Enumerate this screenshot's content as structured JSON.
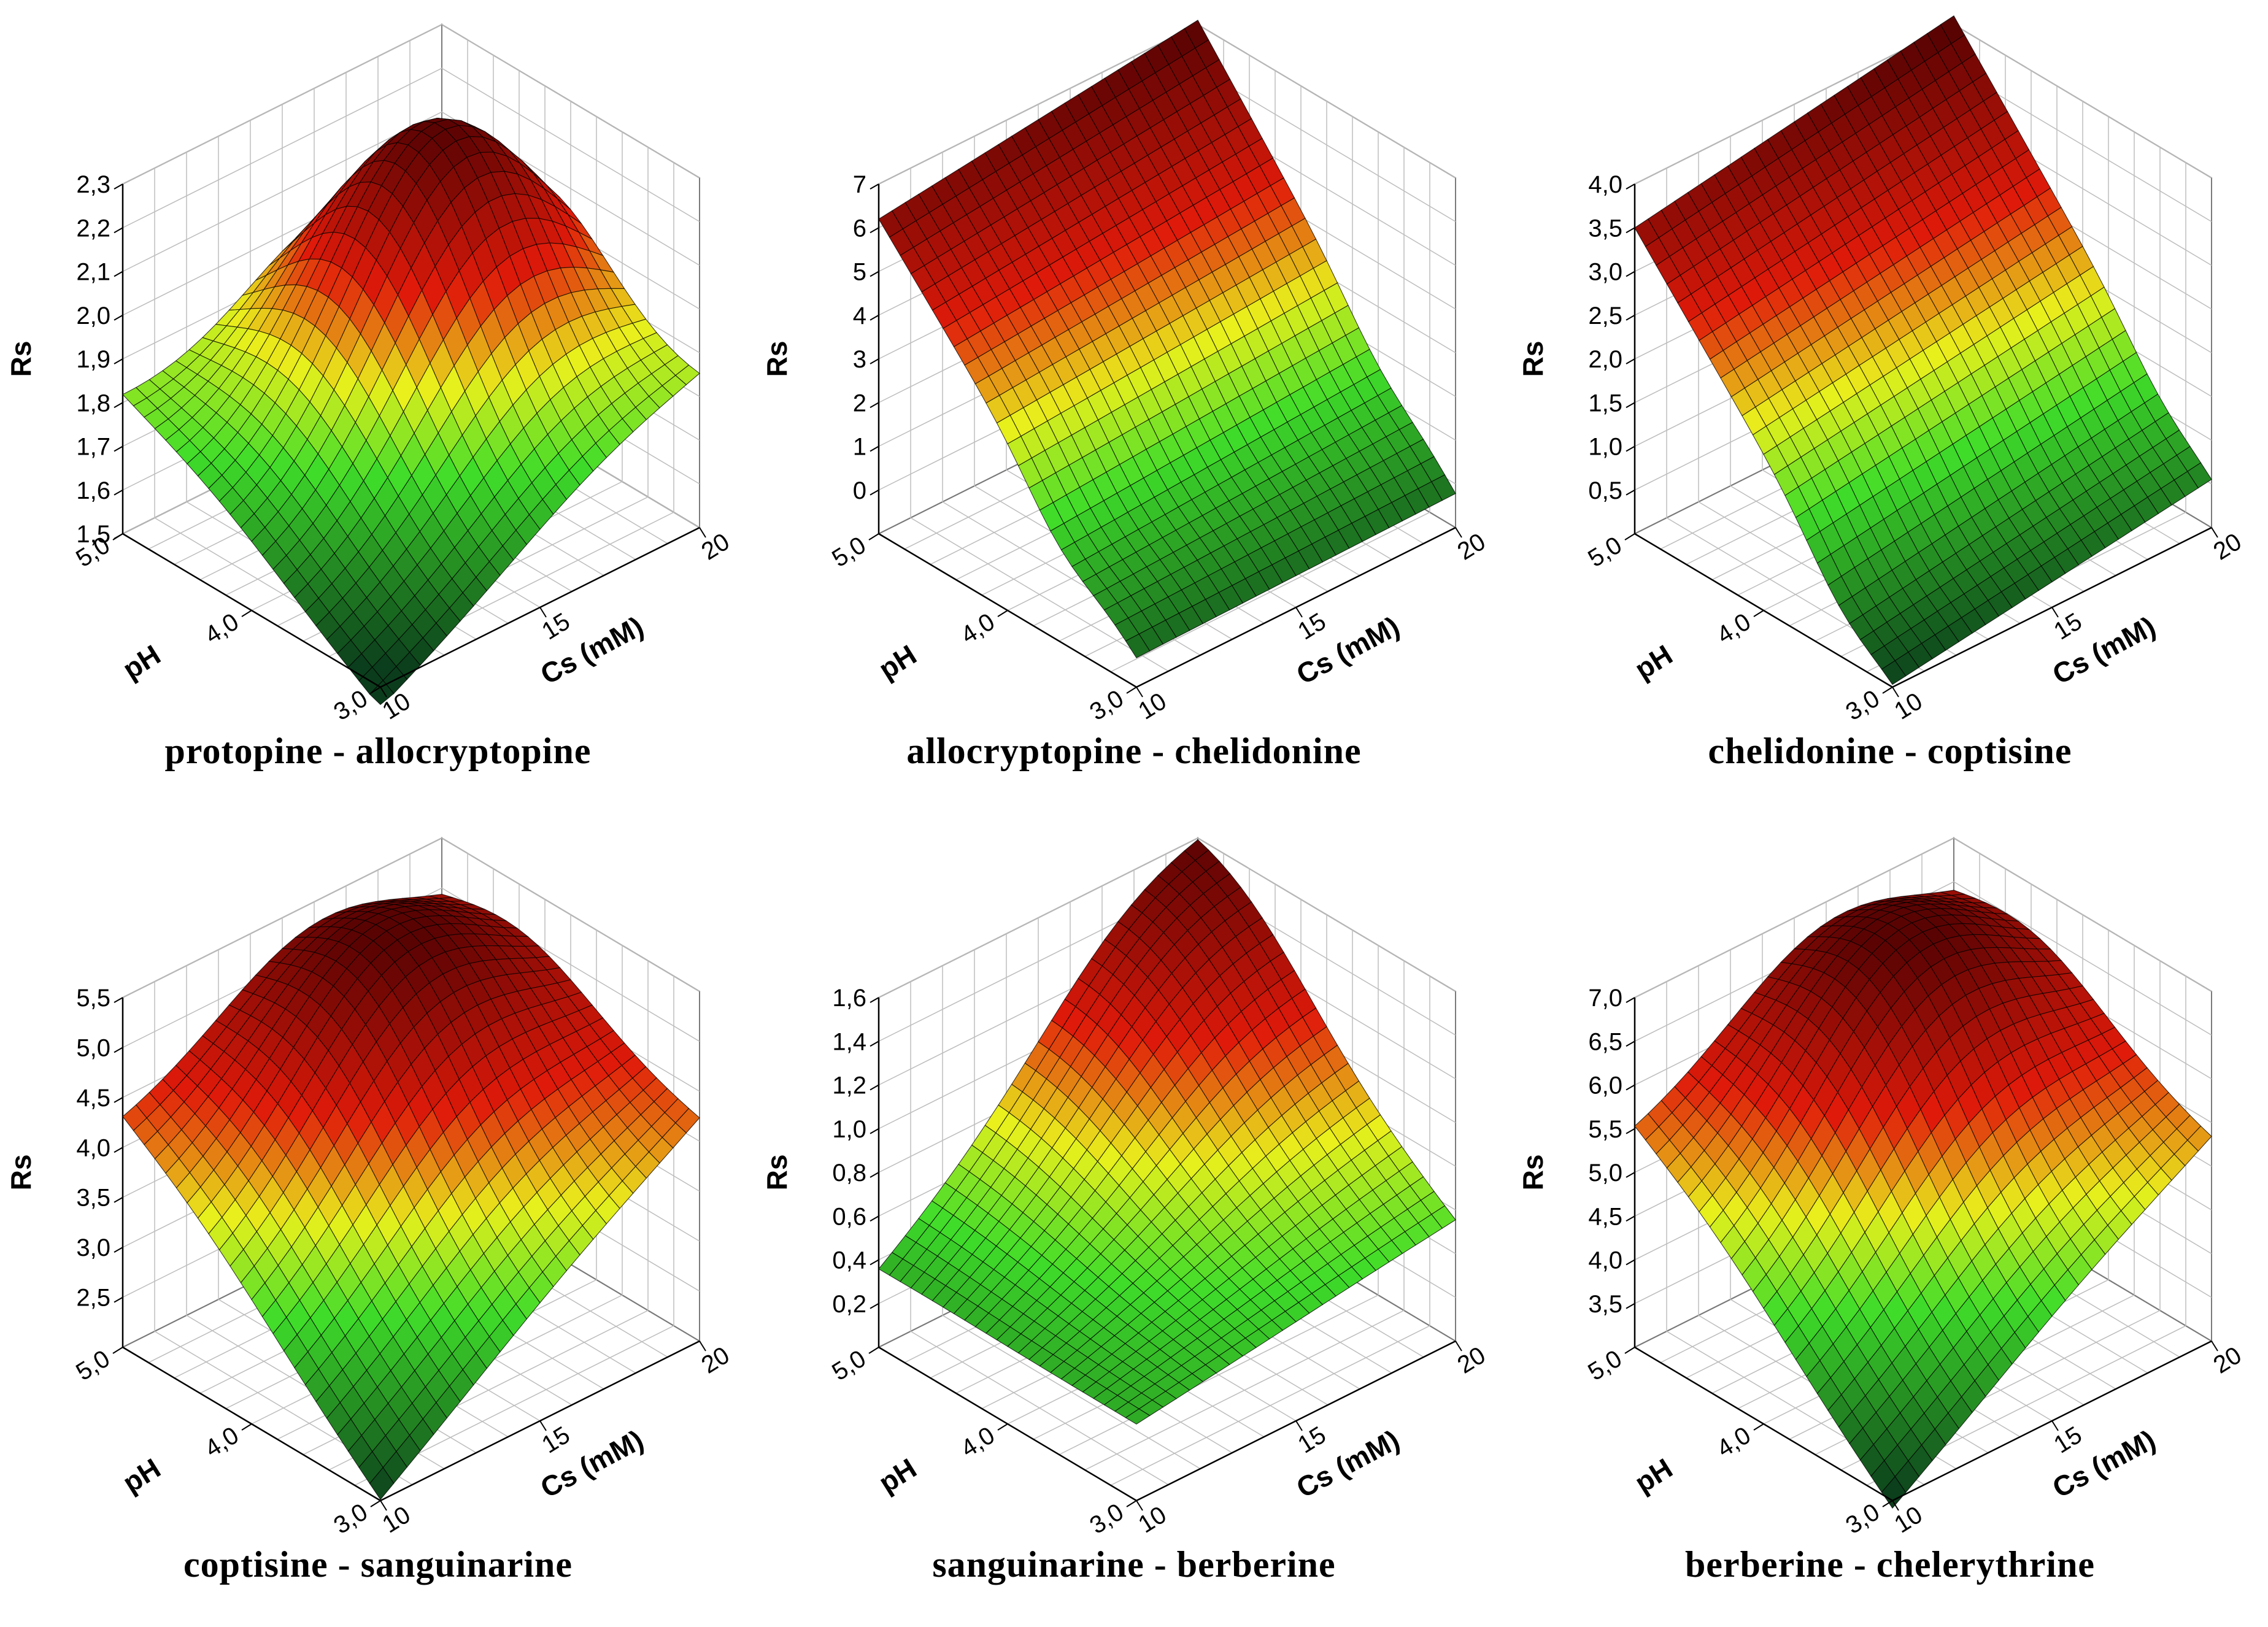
{
  "chart_data": [
    {
      "type": "surface3d",
      "title": "protopine - allocryptopine",
      "xlabel": "Cs (mM)",
      "ylabel": "pH",
      "zlabel": "Rs",
      "x_ticks": [
        "10",
        "15",
        "20"
      ],
      "y_ticks": [
        "3,0",
        "4,0",
        "5,0"
      ],
      "z_ticks": [
        "1,5",
        "1,6",
        "1,7",
        "1,8",
        "1,9",
        "2,0",
        "2,1",
        "2,2",
        "2,3"
      ],
      "xlim": [
        10,
        20
      ],
      "ylim": [
        3.0,
        5.0
      ],
      "zlim": [
        1.5,
        2.3
      ],
      "corners": {
        "cs10_ph3": 1.45,
        "cs20_ph3": 1.82,
        "cs10_ph5": 1.8,
        "cs20_ph5": 1.65
      },
      "peak": {
        "cs": 17,
        "ph": 4.3,
        "rs": 2.3
      }
    },
    {
      "type": "surface3d",
      "title": "allocryptopine - chelidonine",
      "xlabel": "Cs (mM)",
      "ylabel": "pH",
      "zlabel": "Rs",
      "x_ticks": [
        "10",
        "15",
        "20"
      ],
      "y_ticks": [
        "3,0",
        "4,0",
        "5,0"
      ],
      "z_ticks": [
        "0",
        "1",
        "2",
        "3",
        "4",
        "5",
        "6",
        "7"
      ],
      "xlim": [
        10,
        20
      ],
      "ylim": [
        3.0,
        5.0
      ],
      "zlim": [
        -1,
        7
      ],
      "corners": {
        "cs10_ph3": -0.3,
        "cs20_ph3": -0.2,
        "cs10_ph5": 6.2,
        "cs20_ph5": 7.1
      },
      "trough_ph": 3.6
    },
    {
      "type": "surface3d",
      "title": "chelidonine - coptisine",
      "xlabel": "Cs (mM)",
      "ylabel": "pH",
      "zlabel": "Rs",
      "x_ticks": [
        "10",
        "15",
        "20"
      ],
      "y_ticks": [
        "3,0",
        "4,0",
        "5,0"
      ],
      "z_ticks": [
        "0,5",
        "1,0",
        "1,5",
        "2,0",
        "2,5",
        "3,0",
        "3,5",
        "4,0"
      ],
      "xlim": [
        10,
        20
      ],
      "ylim": [
        3.0,
        5.0
      ],
      "zlim": [
        0.0,
        4.0
      ],
      "corners": {
        "cs10_ph3": 0.1,
        "cs20_ph3": 0.6,
        "cs10_ph5": 3.5,
        "cs20_ph5": 4.1
      },
      "trough_ph": 3.4
    },
    {
      "type": "surface3d",
      "title": "coptisine - sanguinarine",
      "xlabel": "Cs (mM)",
      "ylabel": "pH",
      "zlabel": "Rs",
      "x_ticks": [
        "10",
        "15",
        "20"
      ],
      "y_ticks": [
        "3,0",
        "4,0",
        "5,0"
      ],
      "z_ticks": [
        "2,5",
        "3,0",
        "3,5",
        "4,0",
        "4,5",
        "5,0",
        "5,5"
      ],
      "xlim": [
        10,
        20
      ],
      "ylim": [
        3.0,
        5.0
      ],
      "zlim": [
        2.0,
        5.5
      ],
      "corners": {
        "cs10_ph3": 2.0,
        "cs20_ph3": 4.2,
        "cs10_ph5": 4.2,
        "cs20_ph5": 4.6
      },
      "peak": {
        "cs": 16,
        "ph": 4.4,
        "rs": 5.5
      }
    },
    {
      "type": "surface3d",
      "title": "sanguinarine - berberine",
      "xlabel": "Cs (mM)",
      "ylabel": "pH",
      "zlabel": "Rs",
      "x_ticks": [
        "10",
        "15",
        "20"
      ],
      "y_ticks": [
        "3,0",
        "4,0",
        "5,0"
      ],
      "z_ticks": [
        "0,2",
        "0,4",
        "0,6",
        "0,8",
        "1,0",
        "1,2",
        "1,4",
        "1,6"
      ],
      "xlim": [
        10,
        20
      ],
      "ylim": [
        3.0,
        5.0
      ],
      "zlim": [
        0.0,
        1.6
      ],
      "corners": {
        "cs10_ph3": 0.35,
        "cs20_ph3": 0.55,
        "cs10_ph5": 0.35,
        "cs20_ph5": 1.35
      },
      "peak": {
        "cs": 18,
        "ph": 4.7,
        "rs": 1.4
      }
    },
    {
      "type": "surface3d",
      "title": "berberine - chelerythrine",
      "xlabel": "Cs (mM)",
      "ylabel": "pH",
      "zlabel": "Rs",
      "x_ticks": [
        "10",
        "15",
        "20"
      ],
      "y_ticks": [
        "3,0",
        "4,0",
        "5,0"
      ],
      "z_ticks": [
        "3,5",
        "4,0",
        "4,5",
        "5,0",
        "5,5",
        "6,0",
        "6,5",
        "7,0"
      ],
      "xlim": [
        10,
        20
      ],
      "ylim": [
        3.0,
        5.0
      ],
      "zlim": [
        3.0,
        7.0
      ],
      "corners": {
        "cs10_ph3": 2.9,
        "cs20_ph3": 5.3,
        "cs10_ph5": 5.4,
        "cs20_ph5": 6.0
      },
      "peak": {
        "cs": 16,
        "ph": 4.4,
        "rs": 7.0
      }
    }
  ],
  "colors": {
    "low": "#0b3d1c",
    "mid_low": "#3fdc2a",
    "mid": "#e9f01c",
    "mid_high": "#e01a0a",
    "high": "#5a0303",
    "mesh": "#000000",
    "grid": "#bdbdbd",
    "axis": "#000000"
  }
}
